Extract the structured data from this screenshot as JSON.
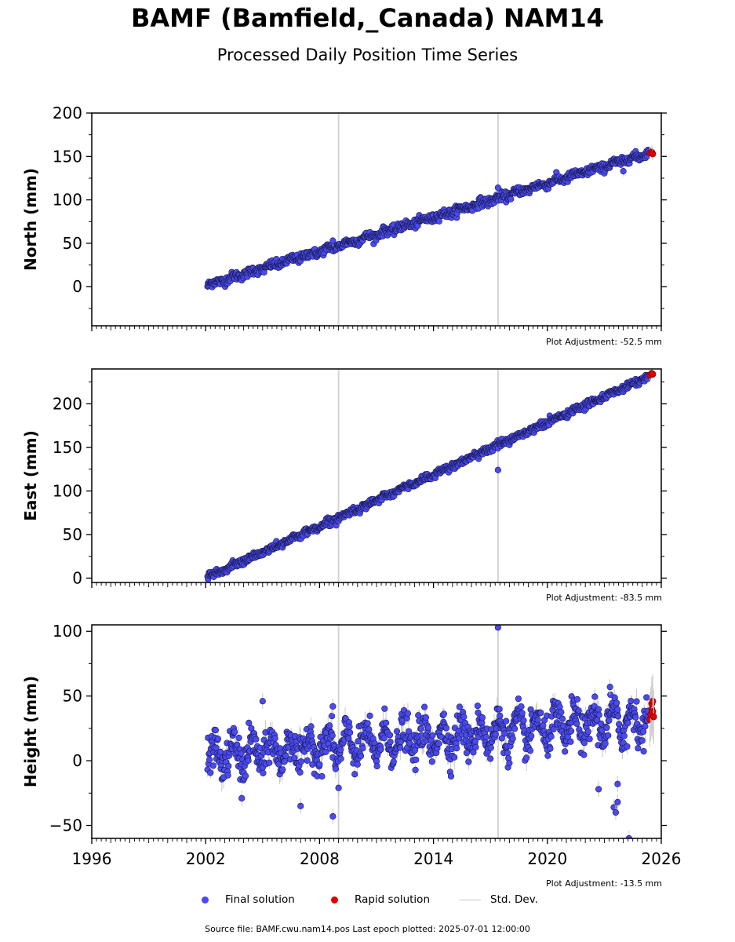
{
  "title": "BAMF (Bamfield,_Canada) NAM14",
  "subtitle": "Processed Daily Position Time Series",
  "source_text": "Source file: BAMF.cwu.nam14.pos  Last epoch plotted: 2025-07-01 12:00:00",
  "legend": {
    "final_label": "Final solution",
    "rapid_label": "Rapid solution",
    "std_label": "Std. Dev."
  },
  "colors": {
    "final": "#4a4af0",
    "rapid": "#e00000",
    "std": "#c8c8c8",
    "edge": "#1a1a50"
  },
  "chart_data": [
    {
      "type": "scatter",
      "ylabel": "North (mm)",
      "xlim": [
        1996,
        2026
      ],
      "ylim": [
        -45,
        200
      ],
      "yticks": [
        0,
        50,
        100,
        150,
        200
      ],
      "xticks": [
        1996,
        2002,
        2008,
        2014,
        2020,
        2026
      ],
      "xtick_labels_shown": false,
      "adjustment": "Plot Adjustment: -52.5 mm",
      "vlines": [
        2009.0,
        2017.4
      ],
      "trend": [
        [
          2002.1,
          2.0
        ],
        [
          2025.5,
          155.0
        ]
      ],
      "noise_mm": 2.5,
      "seasonal_mm": 1.5,
      "outliers": [
        [
          2008.7,
          53
        ],
        [
          2017.4,
          114
        ],
        [
          2024.0,
          133
        ]
      ],
      "rapid": [
        [
          2025.4,
          154
        ],
        [
          2025.5,
          155
        ],
        [
          2025.55,
          153
        ]
      ]
    },
    {
      "type": "scatter",
      "ylabel": "East (mm)",
      "xlim": [
        1996,
        2026
      ],
      "ylim": [
        -5,
        240
      ],
      "yticks": [
        0,
        50,
        100,
        150,
        200
      ],
      "xticks": [
        1996,
        2002,
        2008,
        2014,
        2020,
        2026
      ],
      "xtick_labels_shown": false,
      "adjustment": "Plot Adjustment: -83.5 mm",
      "vlines": [
        2009.0,
        2017.4
      ],
      "trend": [
        [
          2002.1,
          1.0
        ],
        [
          2025.5,
          233.0
        ]
      ],
      "noise_mm": 2.0,
      "seasonal_mm": 1.0,
      "outliers": [
        [
          2017.4,
          124
        ]
      ],
      "rapid": [
        [
          2025.4,
          233
        ],
        [
          2025.5,
          235
        ],
        [
          2025.55,
          234
        ]
      ]
    },
    {
      "type": "scatter",
      "ylabel": "Height (mm)",
      "xlim": [
        1996,
        2026
      ],
      "ylim": [
        -60,
        105
      ],
      "yticks": [
        -50,
        0,
        50,
        100
      ],
      "ytick_labels": [
        "−50",
        "0",
        "50",
        "100"
      ],
      "xticks": [
        1996,
        2002,
        2008,
        2014,
        2020,
        2026
      ],
      "xtick_labels": [
        "1996",
        "2002",
        "2008",
        "2014",
        "2020",
        "2026"
      ],
      "xtick_labels_shown": true,
      "adjustment": "Plot Adjustment: -13.5 mm",
      "vlines": [
        2009.0,
        2017.4
      ],
      "trend": [
        [
          2002.1,
          3.0
        ],
        [
          2025.5,
          32.0
        ]
      ],
      "noise_mm": 7.0,
      "seasonal_mm": 10.0,
      "outliers": [
        [
          2017.4,
          103
        ],
        [
          2007.0,
          -35
        ],
        [
          2008.7,
          -43
        ],
        [
          2009.0,
          -21
        ],
        [
          2003.9,
          -29
        ],
        [
          2022.7,
          -22
        ],
        [
          2023.5,
          -36
        ],
        [
          2023.6,
          -40
        ],
        [
          2023.7,
          -18
        ],
        [
          2023.7,
          -32
        ],
        [
          2024.2,
          11
        ],
        [
          2024.3,
          -60
        ],
        [
          2005.0,
          46
        ],
        [
          2008.7,
          42
        ],
        [
          2023.3,
          57
        ]
      ],
      "rapid": [
        [
          2025.4,
          32
        ],
        [
          2025.45,
          36
        ],
        [
          2025.5,
          40
        ],
        [
          2025.5,
          44
        ],
        [
          2025.55,
          46
        ],
        [
          2025.55,
          38
        ],
        [
          2025.6,
          34
        ]
      ]
    }
  ]
}
